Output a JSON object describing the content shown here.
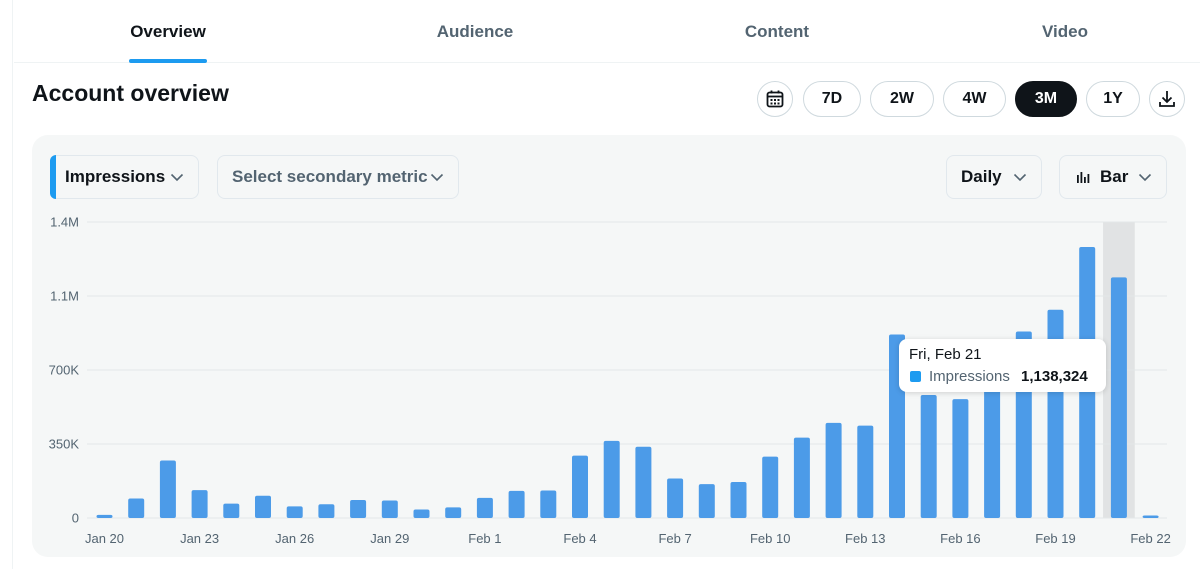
{
  "tabs": [
    {
      "label": "Overview",
      "active": true
    },
    {
      "label": "Audience",
      "active": false
    },
    {
      "label": "Content",
      "active": false
    },
    {
      "label": "Video",
      "active": false
    }
  ],
  "header": {
    "title": "Account overview",
    "calendar_icon": "calendar-icon",
    "download_icon": "download-icon",
    "ranges": [
      "7D",
      "2W",
      "4W",
      "3M",
      "1Y"
    ],
    "selected_range": "3M"
  },
  "controls": {
    "primary_metric": "Impressions",
    "secondary_metric_placeholder": "Select secondary metric",
    "interval": "Daily",
    "chart_type": "Bar"
  },
  "colors": {
    "accent": "#1d9bf0",
    "bar": "#4c9be8",
    "hover_band": "#e1e3e4"
  },
  "tooltip": {
    "date": "Fri, Feb 21",
    "label": "Impressions",
    "value": "1,138,324"
  },
  "chart_data": {
    "type": "bar",
    "title": "",
    "xlabel": "",
    "ylabel": "Impressions",
    "ylim": [
      0,
      1400000
    ],
    "y_ticks": [
      {
        "value": 0,
        "label": "0"
      },
      {
        "value": 350000,
        "label": "350K"
      },
      {
        "value": 700000,
        "label": "700K"
      },
      {
        "value": 1050000,
        "label": "1.1M"
      },
      {
        "value": 1400000,
        "label": "1.4M"
      }
    ],
    "x_tick_labels": [
      {
        "index": 0,
        "label": "Jan 20"
      },
      {
        "index": 3,
        "label": "Jan 23"
      },
      {
        "index": 6,
        "label": "Jan 26"
      },
      {
        "index": 9,
        "label": "Jan 29"
      },
      {
        "index": 12,
        "label": "Feb 1"
      },
      {
        "index": 15,
        "label": "Feb 4"
      },
      {
        "index": 18,
        "label": "Feb 7"
      },
      {
        "index": 21,
        "label": "Feb 10"
      },
      {
        "index": 24,
        "label": "Feb 13"
      },
      {
        "index": 27,
        "label": "Feb 16"
      },
      {
        "index": 30,
        "label": "Feb 19"
      },
      {
        "index": 33,
        "label": "Feb 22"
      }
    ],
    "highlight_index": 32,
    "series": [
      {
        "name": "Impressions",
        "values": [
          15000,
          92000,
          272000,
          132000,
          68000,
          105000,
          55000,
          65000,
          85000,
          83000,
          40000,
          50000,
          95000,
          128000,
          130000,
          295000,
          365000,
          337000,
          187000,
          160000,
          170000,
          290000,
          380000,
          450000,
          437000,
          868000,
          582000,
          562000,
          680000,
          882000,
          985000,
          1282000,
          1138324,
          12000
        ]
      }
    ]
  }
}
